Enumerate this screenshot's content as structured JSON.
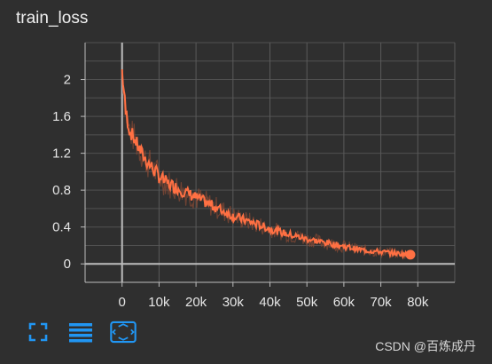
{
  "title": "train_loss",
  "watermark": "CSDN @百炼成丹",
  "colors": {
    "background": "#2f2f2f",
    "series": "#ff7043",
    "series_faint": "#8a4a34",
    "grid": "#5a5a5a",
    "axis": "#bdbdbd",
    "toolbar_icon": "#2196f3"
  },
  "toolbar": {
    "icons": [
      "fullscreen-icon",
      "data-list-icon",
      "fit-domain-icon"
    ]
  },
  "chart_data": {
    "type": "line",
    "title": "train_loss",
    "xlabel": "",
    "ylabel": "",
    "xlim": [
      -10000,
      90000
    ],
    "ylim": [
      -0.2,
      2.4
    ],
    "x_ticks": [
      0,
      10000,
      20000,
      30000,
      40000,
      50000,
      60000,
      70000,
      80000
    ],
    "x_tick_labels": [
      "0",
      "10k",
      "20k",
      "30k",
      "40k",
      "50k",
      "60k",
      "70k",
      "80k"
    ],
    "y_ticks": [
      0,
      0.4,
      0.8,
      1.2,
      1.6,
      2
    ],
    "y_tick_labels": [
      "0",
      "0.4",
      "0.8",
      "1.2",
      "1.6",
      "2"
    ],
    "grid": true,
    "series": [
      {
        "values_x": [
          0,
          1000,
          2000,
          3000,
          4000,
          5000,
          6000,
          8000,
          10000,
          12000,
          15000,
          18000,
          20000,
          23000,
          26000,
          30000,
          35000,
          40000,
          45000,
          50000,
          55000,
          60000,
          65000,
          70000,
          75000,
          78000
        ],
        "values_y": [
          2.1,
          1.65,
          1.45,
          1.38,
          1.3,
          1.22,
          1.15,
          1.05,
          0.95,
          0.88,
          0.82,
          0.76,
          0.72,
          0.66,
          0.6,
          0.52,
          0.45,
          0.38,
          0.32,
          0.27,
          0.23,
          0.19,
          0.15,
          0.13,
          0.11,
          0.1
        ]
      }
    ]
  }
}
